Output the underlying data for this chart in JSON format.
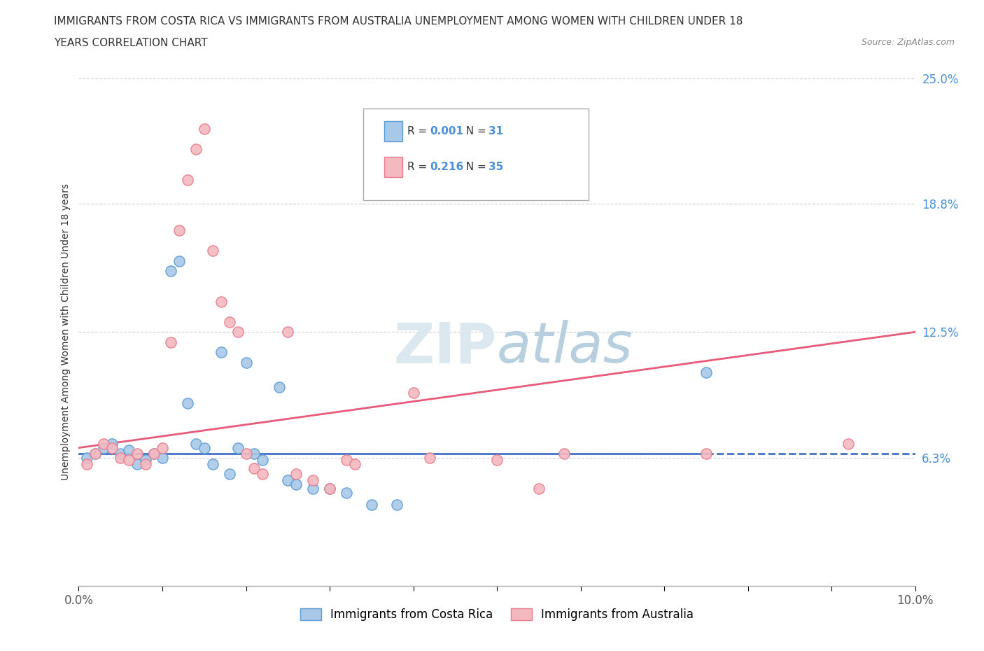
{
  "title_line1": "IMMIGRANTS FROM COSTA RICA VS IMMIGRANTS FROM AUSTRALIA UNEMPLOYMENT AMONG WOMEN WITH CHILDREN UNDER 18",
  "title_line2": "YEARS CORRELATION CHART",
  "source_text": "Source: ZipAtlas.com",
  "ylabel": "Unemployment Among Women with Children Under 18 years",
  "xlim": [
    0.0,
    0.1
  ],
  "ylim": [
    0.0,
    0.25
  ],
  "yticks": [
    0.063,
    0.125,
    0.188,
    0.25
  ],
  "ytick_labels": [
    "6.3%",
    "12.5%",
    "18.8%",
    "25.0%"
  ],
  "color_cr": "#a8c8e8",
  "color_au": "#f4b8c0",
  "edge_cr": "#5b9bd5",
  "edge_au": "#e87a8a",
  "line_color_cr": "#4472c4",
  "line_color_au": "#e85a7a",
  "grid_color": "#d0d0d0",
  "bg_color": "#ffffff",
  "watermark_color": "#dce8f0",
  "costa_rica_x": [
    0.001,
    0.002,
    0.003,
    0.004,
    0.005,
    0.006,
    0.007,
    0.008,
    0.009,
    0.01,
    0.011,
    0.012,
    0.013,
    0.014,
    0.015,
    0.016,
    0.017,
    0.018,
    0.019,
    0.02,
    0.021,
    0.022,
    0.024,
    0.025,
    0.026,
    0.028,
    0.03,
    0.032,
    0.035,
    0.038,
    0.075
  ],
  "costa_rica_y": [
    0.063,
    0.065,
    0.068,
    0.07,
    0.065,
    0.067,
    0.06,
    0.062,
    0.065,
    0.063,
    0.155,
    0.16,
    0.09,
    0.07,
    0.068,
    0.06,
    0.115,
    0.055,
    0.068,
    0.11,
    0.065,
    0.062,
    0.098,
    0.052,
    0.05,
    0.048,
    0.048,
    0.046,
    0.04,
    0.04,
    0.105
  ],
  "australia_x": [
    0.001,
    0.002,
    0.003,
    0.004,
    0.005,
    0.006,
    0.007,
    0.008,
    0.009,
    0.01,
    0.011,
    0.012,
    0.013,
    0.014,
    0.015,
    0.016,
    0.017,
    0.018,
    0.019,
    0.02,
    0.021,
    0.022,
    0.025,
    0.026,
    0.028,
    0.03,
    0.032,
    0.033,
    0.04,
    0.042,
    0.05,
    0.055,
    0.058,
    0.075,
    0.092
  ],
  "australia_y": [
    0.06,
    0.065,
    0.07,
    0.068,
    0.063,
    0.062,
    0.065,
    0.06,
    0.065,
    0.068,
    0.12,
    0.175,
    0.2,
    0.215,
    0.225,
    0.165,
    0.14,
    0.13,
    0.125,
    0.065,
    0.058,
    0.055,
    0.125,
    0.055,
    0.052,
    0.048,
    0.062,
    0.06,
    0.095,
    0.063,
    0.062,
    0.048,
    0.065,
    0.065,
    0.07
  ]
}
